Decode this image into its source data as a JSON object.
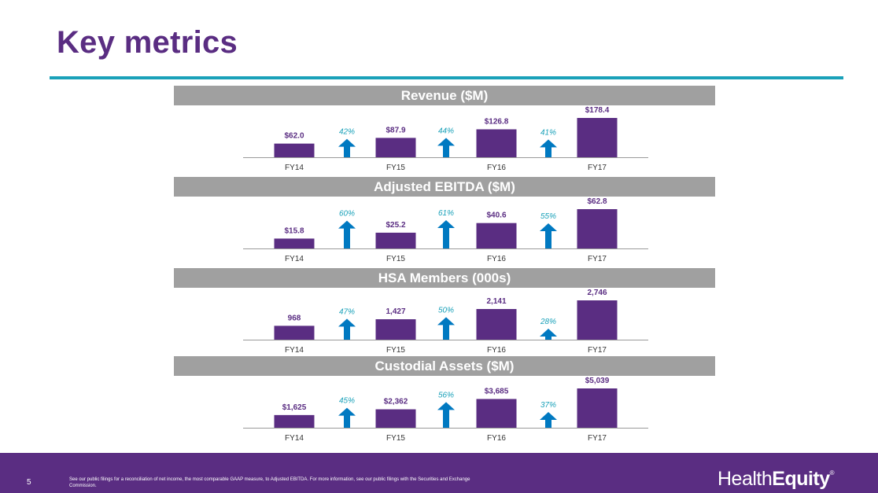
{
  "title": "Key metrics",
  "colors": {
    "bar": "#5a2d82",
    "arrow": "#0079c1",
    "growth_text": "#1aa1b9",
    "header_bg": "#a0a0a0",
    "rule": "#1aa1b9",
    "footer_bg": "#5a2d82"
  },
  "chart_data": [
    {
      "type": "bar",
      "title": "Revenue ($M)",
      "categories": [
        "FY14",
        "FY15",
        "FY16",
        "FY17"
      ],
      "values": [
        62.0,
        87.9,
        126.8,
        178.4
      ],
      "value_labels": [
        "$62.0",
        "$87.9",
        "$126.8",
        "$178.4"
      ],
      "growth": [
        "42%",
        "44%",
        "41%"
      ],
      "ylim": [
        0,
        178.4
      ]
    },
    {
      "type": "bar",
      "title": "Adjusted EBITDA ($M)",
      "categories": [
        "FY14",
        "FY15",
        "FY16",
        "FY17"
      ],
      "values": [
        15.8,
        25.2,
        40.6,
        62.8
      ],
      "value_labels": [
        "$15.8",
        "$25.2",
        "$40.6",
        "$62.8"
      ],
      "growth": [
        "60%",
        "61%",
        "55%"
      ],
      "ylim": [
        0,
        62.8
      ]
    },
    {
      "type": "bar",
      "title": "HSA Members (000s)",
      "categories": [
        "FY14",
        "FY15",
        "FY16",
        "FY17"
      ],
      "values": [
        968,
        1427,
        2141,
        2746
      ],
      "value_labels": [
        "968",
        "1,427",
        "2,141",
        "2,746"
      ],
      "growth": [
        "47%",
        "50%",
        "28%"
      ],
      "ylim": [
        0,
        2746
      ]
    },
    {
      "type": "bar",
      "title": "Custodial Assets ($M)",
      "categories": [
        "FY14",
        "FY15",
        "FY16",
        "FY17"
      ],
      "values": [
        1625,
        2362,
        3685,
        5039
      ],
      "value_labels": [
        "$1,625",
        "$2,362",
        "$3,685",
        "$5,039"
      ],
      "growth": [
        "45%",
        "56%",
        "37%"
      ],
      "ylim": [
        0,
        5039
      ]
    }
  ],
  "footer": {
    "page_number": "5",
    "footnote": "See our public filings for a reconciliation of net income, the most comparable GAAP measure, to Adjusted EBITDA. For more information, see our public filings with the Securities and Exchange Commission.",
    "logo_part1": "Health",
    "logo_part2": "Equity",
    "logo_mark": "®"
  }
}
